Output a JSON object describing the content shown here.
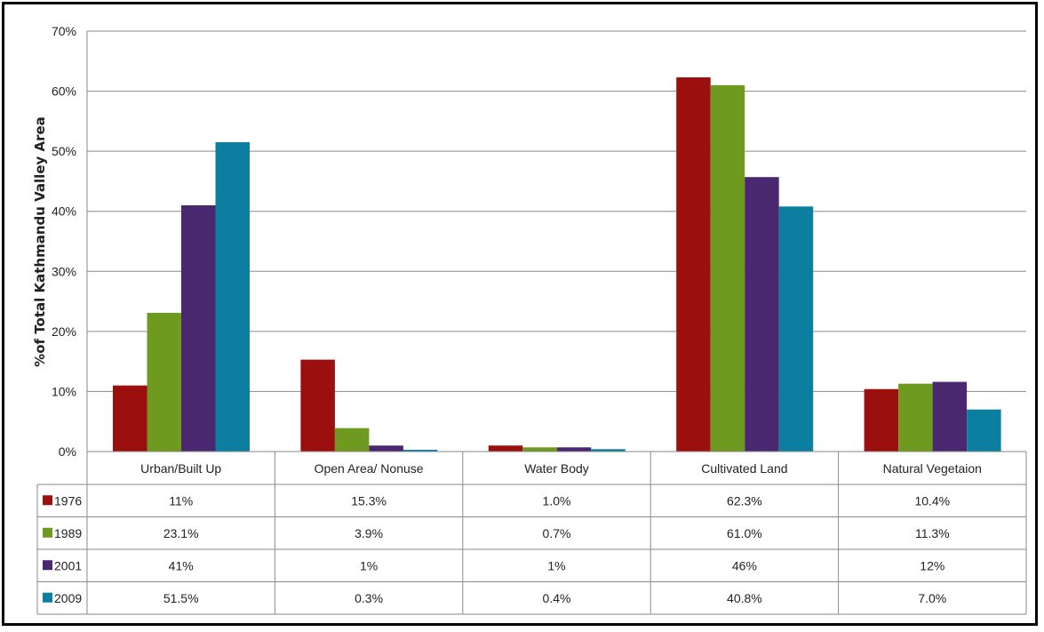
{
  "chart_data": {
    "type": "bar",
    "title": "",
    "xlabel": "",
    "ylabel": "%of Total Kathmandu Valley Area",
    "ylim": [
      0,
      70
    ],
    "yticks": [
      "0%",
      "10%",
      "20%",
      "30%",
      "40%",
      "50%",
      "60%",
      "70%"
    ],
    "grid": true,
    "legend": "data-table",
    "categories": [
      "Urban/Built Up",
      "Open Area/ Nonuse",
      "Water Body",
      "Cultivated Land",
      "Natural Vegetaion"
    ],
    "series": [
      {
        "name": "1976",
        "color": "#9B0F0F",
        "values": [
          11,
          15.3,
          1.0,
          62.3,
          10.4
        ],
        "labels": [
          "11%",
          "15.3%",
          "1.0%",
          "62.3%",
          "10.4%"
        ]
      },
      {
        "name": "1989",
        "color": "#6E9A20",
        "values": [
          23.1,
          3.9,
          0.7,
          61.0,
          11.3
        ],
        "labels": [
          "23.1%",
          "3.9%",
          "0.7%",
          "61.0%",
          "11.3%"
        ]
      },
      {
        "name": "2001",
        "color": "#4A2870",
        "values": [
          41,
          1,
          0.7,
          45.7,
          11.6
        ],
        "labels": [
          "41%",
          "1%",
          "1%",
          "46%",
          "12%"
        ]
      },
      {
        "name": "2009",
        "color": "#0C7FA0",
        "values": [
          51.5,
          0.3,
          0.4,
          40.8,
          7.0
        ],
        "labels": [
          "51.5%",
          "0.3%",
          "0.4%",
          "40.8%",
          "7.0%"
        ]
      }
    ]
  }
}
